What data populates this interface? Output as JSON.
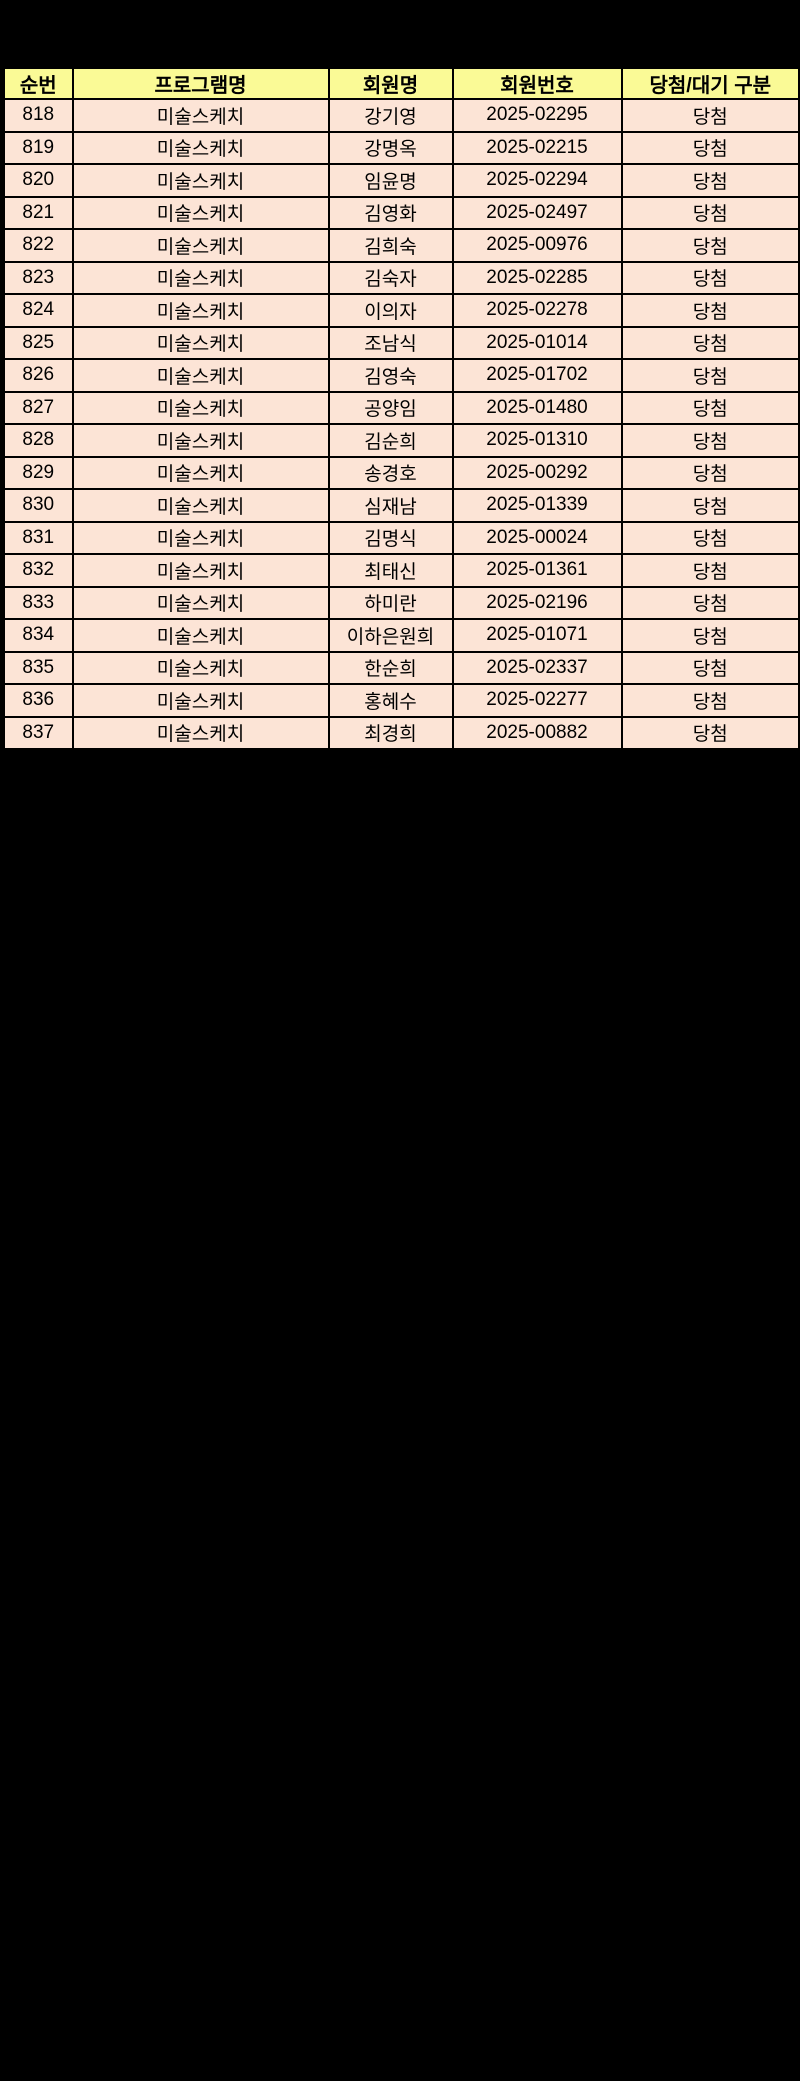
{
  "page": {
    "background": "#000000"
  },
  "table": {
    "columns": [
      "순번",
      "프로그램명",
      "회원명",
      "회원번호",
      "당첨/대기 구분"
    ],
    "column_keys": [
      "seq",
      "program",
      "member_name",
      "member_no",
      "status"
    ],
    "colors": {
      "header_bg": "#FAFA96",
      "row_bg": "#FCE4D6",
      "border": "#000000",
      "text": "#000000"
    },
    "rows": [
      {
        "seq": "818",
        "program": "미술스케치",
        "member_name": "강기영",
        "member_no": "2025-02295",
        "status": "당첨"
      },
      {
        "seq": "819",
        "program": "미술스케치",
        "member_name": "강명옥",
        "member_no": "2025-02215",
        "status": "당첨"
      },
      {
        "seq": "820",
        "program": "미술스케치",
        "member_name": "임윤명",
        "member_no": "2025-02294",
        "status": "당첨"
      },
      {
        "seq": "821",
        "program": "미술스케치",
        "member_name": "김영화",
        "member_no": "2025-02497",
        "status": "당첨"
      },
      {
        "seq": "822",
        "program": "미술스케치",
        "member_name": "김희숙",
        "member_no": "2025-00976",
        "status": "당첨"
      },
      {
        "seq": "823",
        "program": "미술스케치",
        "member_name": "김숙자",
        "member_no": "2025-02285",
        "status": "당첨"
      },
      {
        "seq": "824",
        "program": "미술스케치",
        "member_name": "이의자",
        "member_no": "2025-02278",
        "status": "당첨"
      },
      {
        "seq": "825",
        "program": "미술스케치",
        "member_name": "조남식",
        "member_no": "2025-01014",
        "status": "당첨"
      },
      {
        "seq": "826",
        "program": "미술스케치",
        "member_name": "김영숙",
        "member_no": "2025-01702",
        "status": "당첨"
      },
      {
        "seq": "827",
        "program": "미술스케치",
        "member_name": "공양임",
        "member_no": "2025-01480",
        "status": "당첨"
      },
      {
        "seq": "828",
        "program": "미술스케치",
        "member_name": "김순희",
        "member_no": "2025-01310",
        "status": "당첨"
      },
      {
        "seq": "829",
        "program": "미술스케치",
        "member_name": "송경호",
        "member_no": "2025-00292",
        "status": "당첨"
      },
      {
        "seq": "830",
        "program": "미술스케치",
        "member_name": "심재남",
        "member_no": "2025-01339",
        "status": "당첨"
      },
      {
        "seq": "831",
        "program": "미술스케치",
        "member_name": "김명식",
        "member_no": "2025-00024",
        "status": "당첨"
      },
      {
        "seq": "832",
        "program": "미술스케치",
        "member_name": "최태신",
        "member_no": "2025-01361",
        "status": "당첨"
      },
      {
        "seq": "833",
        "program": "미술스케치",
        "member_name": "하미란",
        "member_no": "2025-02196",
        "status": "당첨"
      },
      {
        "seq": "834",
        "program": "미술스케치",
        "member_name": "이하은원희",
        "member_no": "2025-01071",
        "status": "당첨"
      },
      {
        "seq": "835",
        "program": "미술스케치",
        "member_name": "한순희",
        "member_no": "2025-02337",
        "status": "당첨"
      },
      {
        "seq": "836",
        "program": "미술스케치",
        "member_name": "홍혜수",
        "member_no": "2025-02277",
        "status": "당첨"
      },
      {
        "seq": "837",
        "program": "미술스케치",
        "member_name": "최경희",
        "member_no": "2025-00882",
        "status": "당첨"
      }
    ]
  }
}
